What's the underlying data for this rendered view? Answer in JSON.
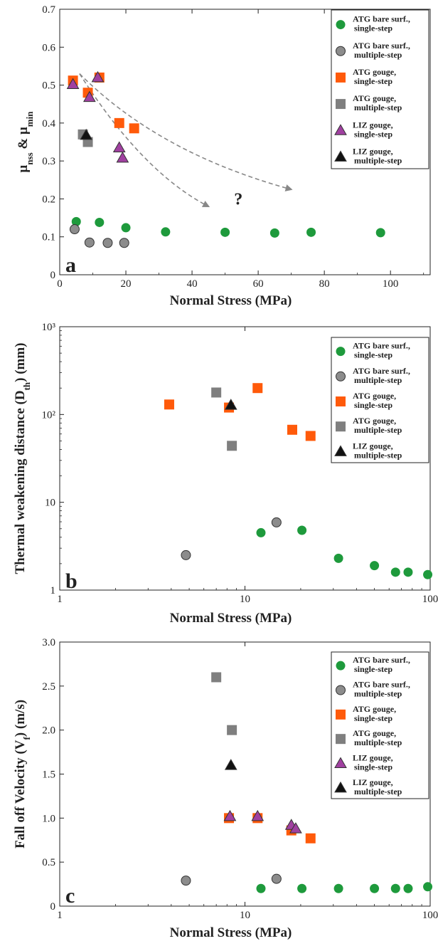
{
  "legend": {
    "atg_bare_single": "ATG bare surf., single-step",
    "atg_bare_multi": "ATG bare surf., multiple-step",
    "atg_gouge_single": "ATG gouge, single-step",
    "atg_gouge_multi": "ATG gouge, multiple-step",
    "liz_gouge_single": "LIZ gouge, single-step",
    "liz_gouge_multi": "LIZ gouge, multiple-step"
  },
  "colors": {
    "green": "#1e9a3c",
    "grey": "#8c8c8c",
    "orange": "#ff5a0a",
    "grey_square": "#7f7f7f",
    "purple": "#a040a0",
    "black": "#111111",
    "arrow": "#888888"
  },
  "chart_data": [
    {
      "panel": "a",
      "type": "scatter",
      "xlabel": "Normal Stress (MPa)",
      "ylabel_parts": [
        "μ",
        "nss",
        " & μ",
        "min"
      ],
      "xlim": [
        0,
        112
      ],
      "ylim": [
        0,
        0.7
      ],
      "xscale": "linear",
      "yscale": "linear",
      "xticks": [
        "0",
        "20",
        "40",
        "60",
        "80",
        "100"
      ],
      "xtick_values": [
        0,
        20,
        40,
        60,
        80,
        100
      ],
      "yticks": [
        "0",
        "0.1",
        "0.2",
        "0.3",
        "0.4",
        "0.5",
        "0.6",
        "0.7"
      ],
      "ytick_values": [
        0,
        0.1,
        0.2,
        0.3,
        0.4,
        0.5,
        0.6,
        0.7
      ],
      "legend_position": "top-right",
      "annotation": "?",
      "annotation_at": [
        54,
        0.185
      ],
      "arrows": [
        {
          "from": [
            6,
            0.53
          ],
          "via": [
            25,
            0.27
          ],
          "to": [
            45,
            0.18
          ]
        },
        {
          "from": [
            6,
            0.53
          ],
          "via": [
            30,
            0.32
          ],
          "to": [
            70,
            0.225
          ]
        }
      ],
      "series": [
        {
          "name": "ATG bare surf., single-step",
          "marker": "circle",
          "color": "green",
          "x": [
            5,
            12,
            20,
            32,
            50,
            65,
            76,
            97
          ],
          "y": [
            0.14,
            0.138,
            0.124,
            0.113,
            0.112,
            0.11,
            0.112,
            0.111
          ]
        },
        {
          "name": "ATG bare surf., multiple-step",
          "marker": "circle",
          "color": "grey",
          "x": [
            4.5,
            9,
            14.5,
            19.5
          ],
          "y": [
            0.12,
            0.085,
            0.084,
            0.084
          ]
        },
        {
          "name": "ATG gouge, single-step",
          "marker": "square",
          "color": "orange",
          "x": [
            4,
            8.5,
            12,
            18,
            22.5
          ],
          "y": [
            0.512,
            0.48,
            0.52,
            0.4,
            0.386
          ]
        },
        {
          "name": "ATG gouge, multiple-step",
          "marker": "square",
          "color": "grey_square",
          "x": [
            7,
            8.5
          ],
          "y": [
            0.37,
            0.35
          ]
        },
        {
          "name": "LIZ gouge, single-step",
          "marker": "triangle",
          "color": "purple",
          "x": [
            4,
            9,
            11.5,
            18,
            19
          ],
          "y": [
            0.502,
            0.468,
            0.52,
            0.335,
            0.308
          ]
        },
        {
          "name": "LIZ gouge, multiple-step",
          "marker": "triangle",
          "color": "black",
          "x": [
            8
          ],
          "y": [
            0.368
          ]
        }
      ]
    },
    {
      "panel": "b",
      "type": "scatter",
      "xlabel": "Normal Stress (MPa)",
      "ylabel_parts": [
        "Thermal weakening distance (D",
        "th",
        ") (mm)"
      ],
      "xlim": [
        1,
        100
      ],
      "ylim": [
        1,
        1000
      ],
      "xscale": "log",
      "yscale": "log",
      "xticks": [
        "1",
        "10",
        "100"
      ],
      "xtick_values": [
        1,
        10,
        100
      ],
      "yticks": [
        "1",
        "10",
        "10²",
        "10³"
      ],
      "ytick_values": [
        1,
        10,
        100,
        1000
      ],
      "legend_position": "top-right",
      "series": [
        {
          "name": "ATG bare surf., single-step",
          "marker": "circle",
          "color": "green",
          "x": [
            12.2,
            20.3,
            32,
            50,
            65,
            76,
            97
          ],
          "y": [
            4.5,
            4.8,
            2.3,
            1.9,
            1.6,
            1.6,
            1.5
          ]
        },
        {
          "name": "ATG bare surf., multiple-step",
          "marker": "circle",
          "color": "grey",
          "x": [
            4.8,
            14.8
          ],
          "y": [
            2.5,
            5.9
          ]
        },
        {
          "name": "ATG gouge, single-step",
          "marker": "square",
          "color": "orange",
          "x": [
            3.9,
            8.2,
            11.7,
            18,
            22.6
          ],
          "y": [
            130,
            120,
            200,
            67,
            57
          ]
        },
        {
          "name": "ATG gouge, multiple-step",
          "marker": "square",
          "color": "grey_square",
          "x": [
            7,
            8.5
          ],
          "y": [
            178,
            44
          ]
        },
        {
          "name": "LIZ gouge, multiple-step",
          "marker": "triangle",
          "color": "black",
          "x": [
            8.4
          ],
          "y": [
            128
          ]
        }
      ]
    },
    {
      "panel": "c",
      "type": "scatter",
      "xlabel": "Normal Stress (MPa)",
      "ylabel_parts": [
        "Fall off Velocity (V",
        "f",
        ") (m/s)"
      ],
      "xlim": [
        1,
        100
      ],
      "ylim": [
        0,
        3.0
      ],
      "xscale": "log",
      "yscale": "linear",
      "xticks": [
        "1",
        "10",
        "100"
      ],
      "xtick_values": [
        1,
        10,
        100
      ],
      "yticks": [
        "0",
        "0.5",
        "1.0",
        "1.5",
        "2.0",
        "2.5",
        "3.0"
      ],
      "ytick_values": [
        0,
        0.5,
        1.0,
        1.5,
        2.0,
        2.5,
        3.0
      ],
      "legend_position": "top-right",
      "series": [
        {
          "name": "ATG bare surf., single-step",
          "marker": "circle",
          "color": "green",
          "x": [
            12.2,
            20.3,
            32,
            50,
            65,
            76,
            97
          ],
          "y": [
            0.2,
            0.2,
            0.2,
            0.2,
            0.2,
            0.2,
            0.22
          ]
        },
        {
          "name": "ATG bare surf., multiple-step",
          "marker": "circle",
          "color": "grey",
          "x": [
            4.8,
            14.8
          ],
          "y": [
            0.29,
            0.31
          ]
        },
        {
          "name": "ATG gouge, single-step",
          "marker": "square",
          "color": "orange",
          "x": [
            8.2,
            11.7,
            17.8,
            22.6
          ],
          "y": [
            1.0,
            1.0,
            0.86,
            0.77
          ]
        },
        {
          "name": "ATG gouge, multiple-step",
          "marker": "square",
          "color": "grey_square",
          "x": [
            7,
            8.5
          ],
          "y": [
            2.6,
            2.0
          ]
        },
        {
          "name": "LIZ gouge, single-step",
          "marker": "triangle",
          "color": "purple",
          "x": [
            8.3,
            11.7,
            17.8,
            18.8
          ],
          "y": [
            1.02,
            1.02,
            0.92,
            0.88
          ]
        },
        {
          "name": "LIZ gouge, multiple-step",
          "marker": "triangle",
          "color": "black",
          "x": [
            8.4
          ],
          "y": [
            1.6
          ]
        }
      ]
    }
  ]
}
